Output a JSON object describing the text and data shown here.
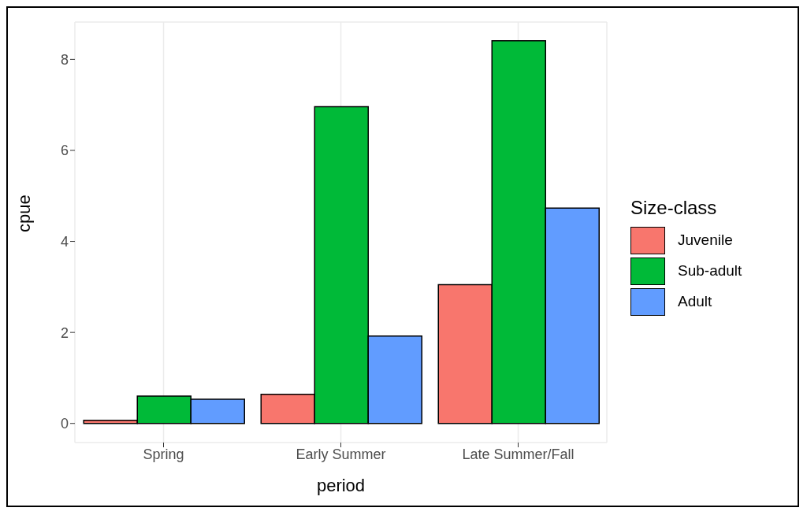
{
  "chart_data": {
    "type": "bar",
    "xlabel": "period",
    "ylabel": "cpue",
    "legend_title": "Size-class",
    "categories": [
      "Spring",
      "Early Summer",
      "Late Summer/Fall"
    ],
    "series": [
      {
        "name": "Juvenile",
        "color": "#f8766d",
        "values": [
          0.07,
          0.64,
          3.05
        ]
      },
      {
        "name": "Sub-adult",
        "color": "#00ba38",
        "values": [
          0.6,
          6.96,
          8.41
        ]
      },
      {
        "name": "Adult",
        "color": "#619cff",
        "values": [
          0.53,
          1.92,
          4.73
        ]
      }
    ],
    "ylim": [
      -0.42,
      8.82
    ],
    "yticks": [
      0,
      2,
      4,
      6,
      8
    ],
    "grid": true,
    "legend": "right"
  }
}
